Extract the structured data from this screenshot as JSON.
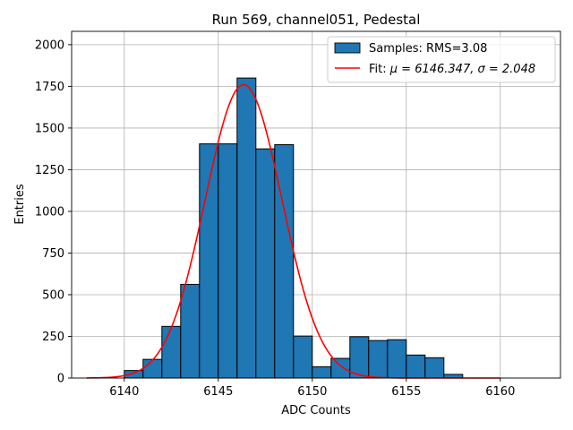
{
  "chart_data": {
    "type": "bar",
    "title": "Run 569, channel051, Pedestal",
    "xlabel": "ADC Counts",
    "ylabel": "Entries",
    "xlim": [
      6137.2,
      6163.2
    ],
    "ylim": [
      0,
      2080
    ],
    "xticks": [
      6140,
      6145,
      6150,
      6155,
      6160
    ],
    "yticks": [
      0,
      250,
      500,
      750,
      1000,
      1250,
      1500,
      1750,
      2000
    ],
    "grid": true,
    "legend_position": "top-right",
    "histogram": {
      "name": "Samples: RMS=3.08",
      "color": "#1f77b4",
      "bin_edges": [
        6140,
        6141,
        6142,
        6143,
        6144,
        6145,
        6146,
        6147,
        6148,
        6149,
        6150,
        6151,
        6152,
        6153,
        6154,
        6155,
        6156,
        6157,
        6158
      ],
      "counts": [
        45,
        112,
        310,
        562,
        1405,
        1405,
        1800,
        1375,
        1400,
        252,
        68,
        118,
        248,
        225,
        230,
        138,
        122,
        22
      ]
    },
    "fit": {
      "name": "Fit: μ = 6146.347, σ = 2.048",
      "label_prefix": "Fit:",
      "mu_label": "μ = 6146.347,",
      "sigma_label": "σ = 2.048",
      "color": "#ff0000",
      "mu": 6146.347,
      "sigma": 2.048,
      "amplitude": 1760,
      "x_range": [
        6138,
        6160
      ]
    }
  }
}
